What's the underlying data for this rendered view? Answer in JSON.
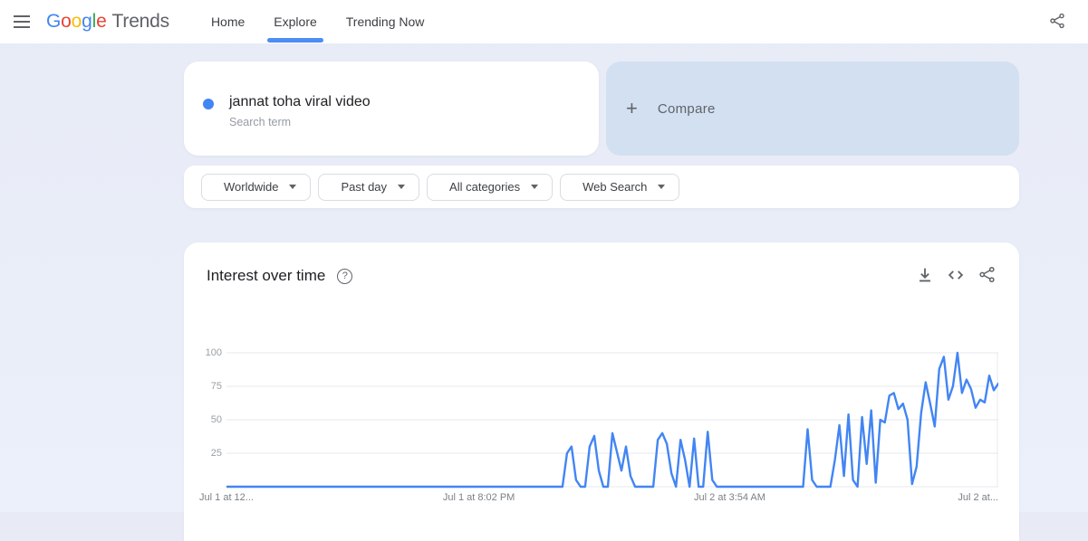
{
  "header": {
    "logo": {
      "letters": [
        {
          "ch": "G",
          "color": "#4285F4"
        },
        {
          "ch": "o",
          "color": "#EA4335"
        },
        {
          "ch": "o",
          "color": "#FBBC05"
        },
        {
          "ch": "g",
          "color": "#4285F4"
        },
        {
          "ch": "l",
          "color": "#34A853"
        },
        {
          "ch": "e",
          "color": "#EA4335"
        }
      ],
      "product": "Trends"
    },
    "nav": [
      {
        "label": "Home",
        "active": false
      },
      {
        "label": "Explore",
        "active": true
      },
      {
        "label": "Trending Now",
        "active": false
      }
    ],
    "icons": [
      "menu-icon",
      "share-icon"
    ]
  },
  "search_card": {
    "term": "jannat toha viral video",
    "type_label": "Search term",
    "dot_color": "#4285f4"
  },
  "compare_card": {
    "plus_glyph": "+",
    "label": "Compare",
    "background": "#d3e0f1"
  },
  "filters": [
    {
      "label": "Worldwide"
    },
    {
      "label": "Past day"
    },
    {
      "label": "All categories"
    },
    {
      "label": "Web Search"
    }
  ],
  "chart_card": {
    "title": "Interest over time",
    "help_glyph": "?",
    "tool_icons": [
      "download-icon",
      "embed-code-icon",
      "share-icon"
    ]
  },
  "chart_data": {
    "type": "line",
    "title": "Interest over time",
    "xlabel": "",
    "ylabel": "",
    "ylim": [
      0,
      100
    ],
    "grid": true,
    "legend": false,
    "x_range_note": "Past day, 8-minute intervals, Jul 1 ~12 PM through Jul 2 ~12 PM",
    "y_ticks": [
      100,
      75,
      50,
      25
    ],
    "x_ticks": [
      {
        "label": "Jul 1 at 12...",
        "pos": 0
      },
      {
        "label": "Jul 1 at 8:02 PM",
        "pos": 0.327
      },
      {
        "label": "Jul 2 at 3:54 AM",
        "pos": 0.652
      },
      {
        "label": "Jul 2 at...",
        "pos": 1
      }
    ],
    "series": [
      {
        "name": "jannat toha viral video",
        "color": "#4285f4",
        "values": [
          0,
          0,
          0,
          0,
          0,
          0,
          0,
          0,
          0,
          0,
          0,
          0,
          0,
          0,
          0,
          0,
          0,
          0,
          0,
          0,
          0,
          0,
          0,
          0,
          0,
          0,
          0,
          0,
          0,
          0,
          0,
          0,
          0,
          0,
          0,
          0,
          0,
          0,
          0,
          0,
          0,
          0,
          0,
          0,
          0,
          0,
          0,
          0,
          0,
          0,
          0,
          0,
          0,
          0,
          0,
          0,
          0,
          0,
          0,
          0,
          0,
          0,
          0,
          0,
          0,
          0,
          0,
          0,
          0,
          0,
          0,
          0,
          0,
          0,
          0,
          25,
          30,
          5,
          0,
          0,
          30,
          38,
          12,
          0,
          0,
          40,
          26,
          12,
          30,
          8,
          0,
          0,
          0,
          0,
          0,
          35,
          40,
          32,
          10,
          0,
          35,
          20,
          0,
          36,
          0,
          0,
          41,
          5,
          0,
          0,
          0,
          0,
          0,
          0,
          0,
          0,
          0,
          0,
          0,
          0,
          0,
          0,
          0,
          0,
          0,
          0,
          0,
          0,
          43,
          5,
          0,
          0,
          0,
          0,
          20,
          46,
          8,
          54,
          5,
          0,
          52,
          17,
          57,
          3,
          50,
          48,
          68,
          70,
          58,
          62,
          50,
          2,
          15,
          55,
          78,
          62,
          45,
          88,
          97,
          65,
          75,
          100,
          70,
          80,
          73,
          59,
          65,
          63,
          83,
          72,
          77
        ]
      }
    ]
  }
}
